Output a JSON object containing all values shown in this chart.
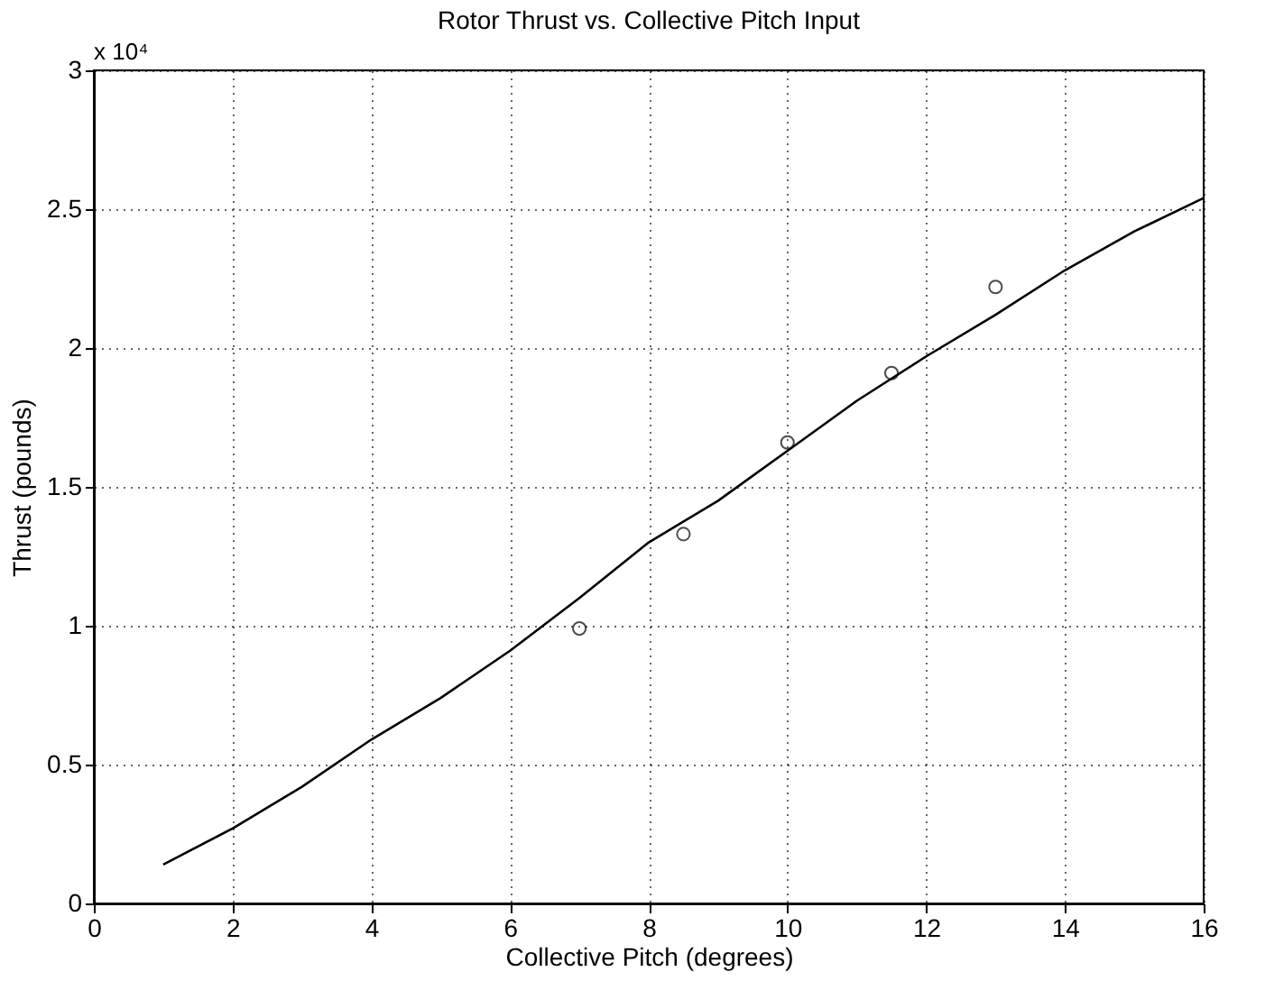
{
  "chart_data": {
    "type": "line",
    "title": "Rotor Thrust vs. Collective Pitch Input",
    "xlabel": "Collective Pitch (degrees)",
    "ylabel": "Thrust (pounds)",
    "annotations": [
      "x 10⁴"
    ],
    "series": [
      {
        "color": "#000000",
        "marker": "none",
        "line_style": "solid",
        "x": [
          1,
          2,
          3,
          4,
          5,
          6,
          7,
          8,
          9,
          10,
          11,
          12,
          13,
          14,
          15,
          16
        ],
        "values": [
          0.14,
          0.27,
          0.42,
          0.59,
          0.74,
          0.91,
          1.1,
          1.3,
          1.45,
          1.63,
          1.81,
          1.97,
          2.12,
          2.28,
          2.42,
          2.54
        ]
      },
      {
        "type": "scatter",
        "color": "#000000",
        "marker": "circle",
        "x": [
          7,
          8.5,
          10,
          11.5,
          13
        ],
        "values": [
          0.99,
          1.33,
          1.66,
          1.91,
          2.22
        ]
      }
    ],
    "xlim": [
      0,
      16
    ],
    "xticks": [
      0,
      2,
      4,
      6,
      8,
      10,
      12,
      14,
      16
    ],
    "ylim": [
      0,
      3
    ],
    "yticks": [
      0,
      0.5,
      1,
      1.5,
      2,
      2.5,
      3
    ],
    "grid": true
  }
}
